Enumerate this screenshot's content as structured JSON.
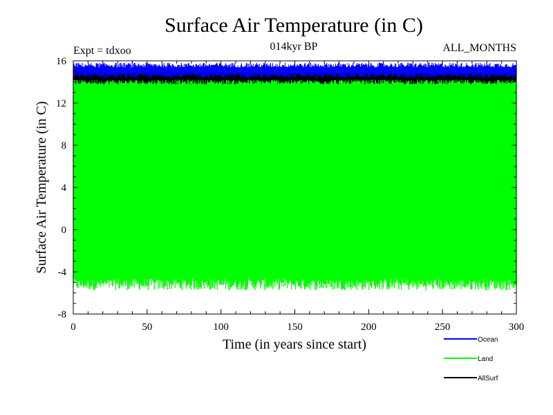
{
  "chart_data": {
    "type": "line",
    "title": "Surface Air Temperature (in C)",
    "subtitle_left": "Expt = tdxoo",
    "subtitle_center": "014kyr BP",
    "subtitle_right": "ALL_MONTHS",
    "xlabel": "Time (in years since start)",
    "ylabel": "Surface Air Temperature (in C)",
    "xlim": [
      0,
      300
    ],
    "ylim": [
      -8,
      16
    ],
    "x_ticks": [
      0,
      50,
      100,
      150,
      200,
      250,
      300
    ],
    "y_ticks": [
      -8,
      -4,
      0,
      4,
      8,
      12,
      16
    ],
    "grid": false,
    "legend_position": "bottom-right",
    "series": [
      {
        "name": "Ocean",
        "color": "#0000ff",
        "sampling": "monthly",
        "band_min": 14.6,
        "band_max": 15.6,
        "mean": 15.1
      },
      {
        "name": "Land",
        "color": "#00ff00",
        "sampling": "monthly",
        "band_min": -5.2,
        "band_max": 14.5,
        "mean": 4.6
      },
      {
        "name": "AllSurf",
        "color": "#000000",
        "sampling": "monthly",
        "band_min": 14.0,
        "band_max": 15.0,
        "mean": 14.5
      }
    ]
  }
}
